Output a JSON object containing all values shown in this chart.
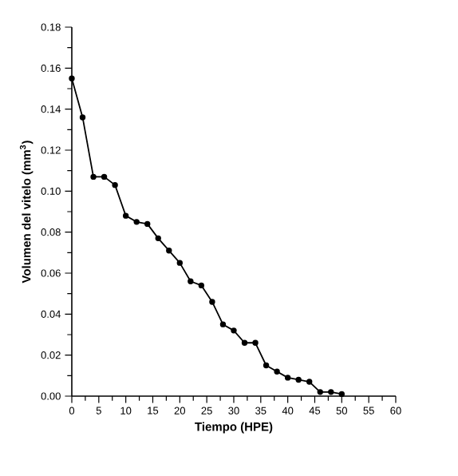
{
  "chart_data": {
    "type": "line",
    "xlabel": "Tiempo (HPE)",
    "ylabel": "Volumen del vitelo (mm$^{3}$)",
    "x": [
      0,
      2,
      4,
      6,
      8,
      10,
      12,
      14,
      16,
      18,
      20,
      22,
      24,
      26,
      28,
      30,
      32,
      34,
      36,
      38,
      40,
      42,
      44,
      46,
      48,
      50
    ],
    "values": [
      0.155,
      0.136,
      0.107,
      0.107,
      0.103,
      0.088,
      0.085,
      0.084,
      0.077,
      0.071,
      0.065,
      0.056,
      0.054,
      0.046,
      0.035,
      0.032,
      0.026,
      0.026,
      0.015,
      0.012,
      0.009,
      0.008,
      0.007,
      0.002,
      0.002,
      0.001
    ],
    "color": "#000000",
    "marker": "circle",
    "line_style": "solid",
    "grid": false,
    "xlim": [
      0,
      60
    ],
    "xticks": [
      0,
      5,
      10,
      15,
      20,
      25,
      30,
      35,
      40,
      45,
      50,
      55,
      60
    ],
    "ylim": [
      0,
      0.18
    ],
    "yticks": [
      {
        "value": 0,
        "label": "0.00"
      },
      {
        "value": 0.02,
        "label": "0.02"
      },
      {
        "value": 0.04,
        "label": "0.04"
      },
      {
        "value": 0.06,
        "label": "0.06"
      },
      {
        "value": 0.08,
        "label": "0.08"
      },
      {
        "value": 0.1,
        "label": "0.10"
      },
      {
        "value": 0.12,
        "label": "0.12"
      },
      {
        "value": 0.14,
        "label": "0.14"
      },
      {
        "value": 0.16,
        "label": "0.16"
      },
      {
        "value": 0.18,
        "label": "0.18"
      }
    ]
  }
}
